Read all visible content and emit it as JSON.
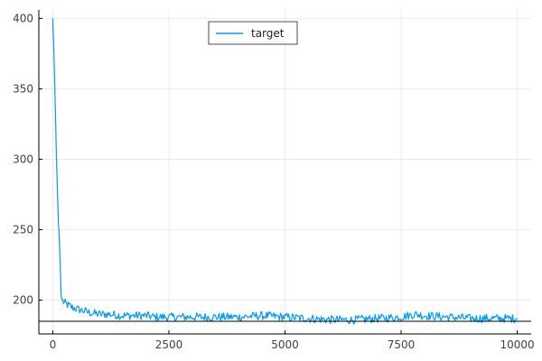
{
  "chart_data": {
    "type": "line",
    "title": "",
    "xlabel": "",
    "ylabel": "",
    "xlim": [
      -300,
      10300
    ],
    "ylim": [
      176,
      406
    ],
    "xticks": [
      0,
      2500,
      5000,
      7500,
      10000
    ],
    "yticks": [
      200,
      250,
      300,
      350,
      400
    ],
    "xtick_labels": [
      "0",
      "2500",
      "5000",
      "7500",
      "10000"
    ],
    "ytick_labels": [
      "200",
      "250",
      "300",
      "350",
      "400"
    ],
    "grid": true,
    "legend_position": "top-center",
    "series": [
      {
        "name": "target",
        "color": "#009AF9",
        "x": [
          0,
          20,
          40,
          60,
          80,
          100,
          120,
          140,
          160,
          180,
          200,
          250,
          300,
          350,
          400,
          500,
          600,
          700,
          800,
          1000,
          1200,
          1500,
          2000,
          2200,
          2500,
          3000,
          3500,
          4000,
          4500,
          5000,
          5500,
          6000,
          6500,
          7000,
          7500,
          7800,
          8000,
          8500,
          9000,
          9500,
          10000
        ],
        "y": [
          400,
          380,
          355,
          330,
          300,
          278,
          255,
          245,
          225,
          203,
          200,
          198,
          197,
          196,
          195,
          194,
          193,
          192,
          191,
          190,
          190,
          189,
          189,
          188,
          188,
          188,
          188,
          188,
          189,
          188,
          187,
          186,
          186,
          187,
          188,
          190,
          189,
          188,
          187,
          187,
          187
        ]
      },
      {
        "name": "",
        "color": "#000000",
        "type": "hline",
        "y": 185
      }
    ]
  }
}
